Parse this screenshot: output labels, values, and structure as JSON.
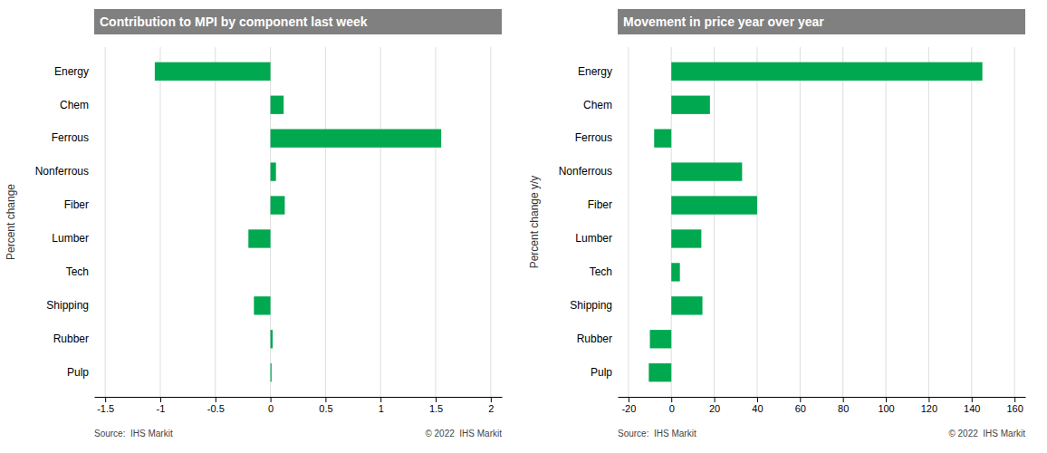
{
  "chart_data": [
    {
      "type": "bar",
      "orientation": "horizontal",
      "title": "Contribution to MPI by component last week",
      "ylabel": "Percent change",
      "categories": [
        "Energy",
        "Chem",
        "Ferrous",
        "Nonferrous",
        "Fiber",
        "Lumber",
        "Tech",
        "Shipping",
        "Rubber",
        "Pulp"
      ],
      "values": [
        -1.05,
        0.12,
        1.55,
        0.05,
        0.13,
        -0.2,
        0.0,
        -0.15,
        0.02,
        0.01
      ],
      "color": "#00a84f",
      "xlim": [
        -1.6,
        2.1
      ],
      "xticks": [
        -1.5,
        -1,
        -0.5,
        0,
        0.5,
        1,
        1.5,
        2
      ],
      "grid": true,
      "annotations": [
        "Source:  IHS Markit",
        "© 2022  IHS Markit"
      ]
    },
    {
      "type": "bar",
      "orientation": "horizontal",
      "title": "Movement in price year over year",
      "ylabel": "Percent change y/y",
      "categories": [
        "Energy",
        "Chem",
        "Ferrous",
        "Nonferrous",
        "Fiber",
        "Lumber",
        "Tech",
        "Shipping",
        "Rubber",
        "Pulp"
      ],
      "values": [
        145.0,
        18.0,
        -8.0,
        33.0,
        40.0,
        14.0,
        4.0,
        14.5,
        -10.0,
        -10.5
      ],
      "color": "#00a84f",
      "xlim": [
        -25,
        165
      ],
      "xticks": [
        -20,
        0,
        20,
        40,
        60,
        80,
        100,
        120,
        140,
        160
      ],
      "grid": true,
      "annotations": [
        "Source:  IHS Markit",
        "© 2022  IHS Markit"
      ]
    }
  ]
}
